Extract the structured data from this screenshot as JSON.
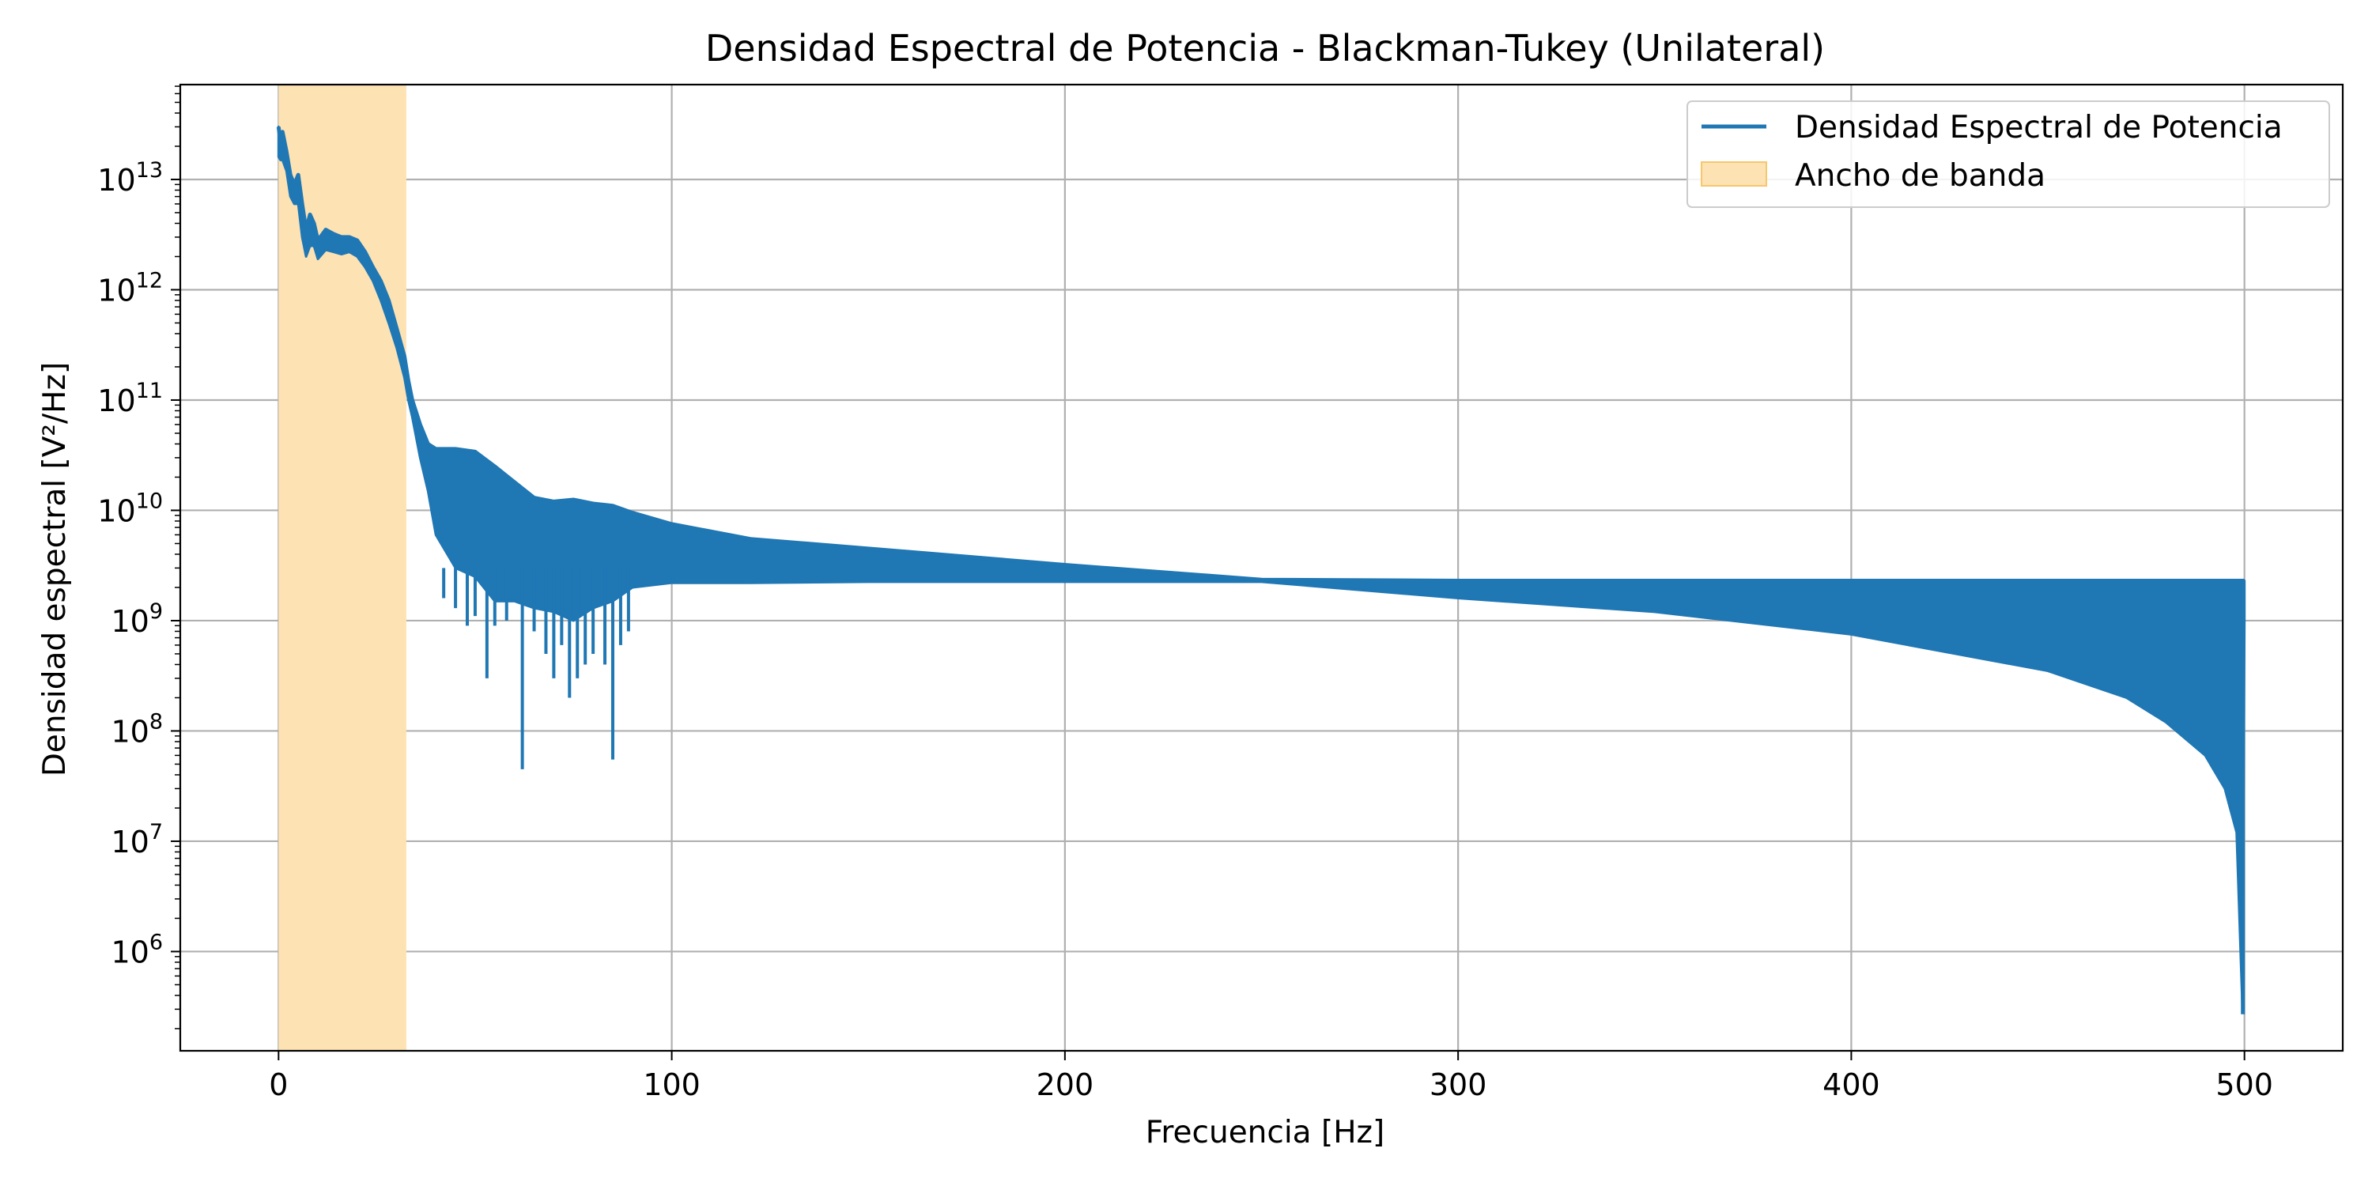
{
  "chart_data": {
    "type": "line",
    "title": "Densidad Espectral de Potencia - Blackman-Tukey (Unilateral)",
    "xlabel": "Frecuencia [Hz]",
    "ylabel": "Densidad espectral [V²/Hz]",
    "x_ticks": [
      0,
      100,
      200,
      300,
      400,
      500
    ],
    "y_ticks": [
      {
        "base": "10",
        "exp": "6",
        "value": 1000000.0
      },
      {
        "base": "10",
        "exp": "7",
        "value": 10000000.0
      },
      {
        "base": "10",
        "exp": "8",
        "value": 100000000.0
      },
      {
        "base": "10",
        "exp": "9",
        "value": 1000000000.0
      },
      {
        "base": "10",
        "exp": "10",
        "value": 10000000000.0
      },
      {
        "base": "10",
        "exp": "11",
        "value": 100000000000.0
      },
      {
        "base": "10",
        "exp": "12",
        "value": 1000000000000.0
      },
      {
        "base": "10",
        "exp": "13",
        "value": 10000000000000.0
      }
    ],
    "xlim": [
      -25,
      525
    ],
    "ylim_log10": [
      5.1,
      13.86
    ],
    "yscale": "log",
    "grid": true,
    "legend_position": "top-right",
    "legend": [
      {
        "label": "Densidad Espectral de Potencia",
        "kind": "line",
        "color": "#1f77b4"
      },
      {
        "label": "Ancho de banda",
        "kind": "patch",
        "color": "#fde2b3",
        "edge": "#f6c76c"
      }
    ],
    "bandwidth": {
      "x_start": 0,
      "x_end": 32.5,
      "color": "#fde2b3"
    },
    "series": [
      {
        "name": "Densidad Espectral de Potencia",
        "color": "#1f77b4",
        "envelope_upper": [
          [
            0,
            30000000000000.0
          ],
          [
            0.5,
            22000000000000.0
          ],
          [
            1,
            27000000000000.0
          ],
          [
            2,
            18000000000000.0
          ],
          [
            3,
            11000000000000.0
          ],
          [
            4,
            9000000000000.0
          ],
          [
            5,
            11000000000000.0
          ],
          [
            6,
            6000000000000.0
          ],
          [
            7,
            3500000000000.0
          ],
          [
            8,
            4800000000000.0
          ],
          [
            9,
            4000000000000.0
          ],
          [
            10,
            2800000000000.0
          ],
          [
            12,
            3500000000000.0
          ],
          [
            14,
            3200000000000.0
          ],
          [
            16,
            3000000000000.0
          ],
          [
            18,
            3000000000000.0
          ],
          [
            20,
            2800000000000.0
          ],
          [
            22,
            2200000000000.0
          ],
          [
            24,
            1600000000000.0
          ],
          [
            26,
            1200000000000.0
          ],
          [
            28,
            800000000000.0
          ],
          [
            30,
            450000000000.0
          ],
          [
            32,
            250000000000.0
          ],
          [
            33,
            150000000000.0
          ],
          [
            34,
            100000000000.0
          ],
          [
            36,
            60000000000.0
          ],
          [
            38,
            40000000000.0
          ],
          [
            40,
            36000000000.0
          ],
          [
            45,
            36000000000.0
          ],
          [
            50,
            34000000000.0
          ],
          [
            55,
            25000000000.0
          ],
          [
            60,
            18000000000.0
          ],
          [
            65,
            13000000000.0
          ],
          [
            70,
            12000000000.0
          ],
          [
            75,
            12500000000.0
          ],
          [
            80,
            11500000000.0
          ],
          [
            85,
            11000000000.0
          ],
          [
            90,
            9500000000.0
          ],
          [
            100,
            7500000000.0
          ],
          [
            120,
            5500000000.0
          ],
          [
            150,
            4500000000.0
          ],
          [
            200,
            3200000000.0
          ],
          [
            250,
            2350000000.0
          ],
          [
            300,
            2300000000.0
          ],
          [
            400,
            2300000000.0
          ],
          [
            500,
            2300000000.0
          ]
        ],
        "envelope_lower": [
          [
            0,
            16000000000000.0
          ],
          [
            0.5,
            15000000000000.0
          ],
          [
            1,
            15000000000000.0
          ],
          [
            2,
            12000000000000.0
          ],
          [
            3,
            7000000000000.0
          ],
          [
            4,
            6000000000000.0
          ],
          [
            5,
            6000000000000.0
          ],
          [
            6,
            3000000000000.0
          ],
          [
            7,
            2000000000000.0
          ],
          [
            8,
            2500000000000.0
          ],
          [
            9,
            2500000000000.0
          ],
          [
            10,
            1900000000000.0
          ],
          [
            12,
            2300000000000.0
          ],
          [
            14,
            2200000000000.0
          ],
          [
            16,
            2100000000000.0
          ],
          [
            18,
            2200000000000.0
          ],
          [
            20,
            2000000000000.0
          ],
          [
            22,
            1600000000000.0
          ],
          [
            24,
            1200000000000.0
          ],
          [
            26,
            800000000000.0
          ],
          [
            28,
            500000000000.0
          ],
          [
            30,
            300000000000.0
          ],
          [
            32,
            160000000000.0
          ],
          [
            33,
            100000000000.0
          ],
          [
            34,
            70000000000.0
          ],
          [
            36,
            30000000000.0
          ],
          [
            38,
            15000000000.0
          ],
          [
            40,
            6000000000.0
          ],
          [
            45,
            3000000000.0
          ],
          [
            50,
            2500000000.0
          ],
          [
            55,
            1500000000.0
          ],
          [
            60,
            1500000000.0
          ],
          [
            65,
            1300000000.0
          ],
          [
            70,
            1200000000.0
          ],
          [
            75,
            1000000000.0
          ],
          [
            80,
            1300000000.0
          ],
          [
            85,
            1500000000.0
          ],
          [
            90,
            2000000000.0
          ],
          [
            100,
            2200000000.0
          ],
          [
            120,
            2200000000.0
          ],
          [
            150,
            2250000000.0
          ],
          [
            200,
            2250000000.0
          ],
          [
            250,
            2250000000.0
          ],
          [
            300,
            1600000000.0
          ],
          [
            350,
            1200000000.0
          ],
          [
            400,
            750000000.0
          ],
          [
            450,
            350000000.0
          ],
          [
            470,
            200000000.0
          ],
          [
            480,
            120000000.0
          ],
          [
            490,
            60000000.0
          ],
          [
            495,
            30000000.0
          ],
          [
            498,
            12000000.0
          ],
          [
            499.5,
            300000.0
          ],
          [
            500,
            1100000000.0
          ]
        ],
        "dips": [
          [
            42,
            1600000000.0
          ],
          [
            45,
            1300000000.0
          ],
          [
            48,
            900000000.0
          ],
          [
            50,
            1100000000.0
          ],
          [
            53,
            300000000.0
          ],
          [
            55,
            900000000.0
          ],
          [
            58,
            1000000000.0
          ],
          [
            62,
            45000000.0
          ],
          [
            65,
            800000000.0
          ],
          [
            68,
            500000000.0
          ],
          [
            70,
            300000000.0
          ],
          [
            72,
            600000000.0
          ],
          [
            74,
            200000000.0
          ],
          [
            76,
            300000000.0
          ],
          [
            78,
            400000000.0
          ],
          [
            80,
            500000000.0
          ],
          [
            83,
            400000000.0
          ],
          [
            85,
            55000000.0
          ],
          [
            87,
            600000000.0
          ],
          [
            89,
            800000000.0
          ]
        ]
      }
    ]
  }
}
